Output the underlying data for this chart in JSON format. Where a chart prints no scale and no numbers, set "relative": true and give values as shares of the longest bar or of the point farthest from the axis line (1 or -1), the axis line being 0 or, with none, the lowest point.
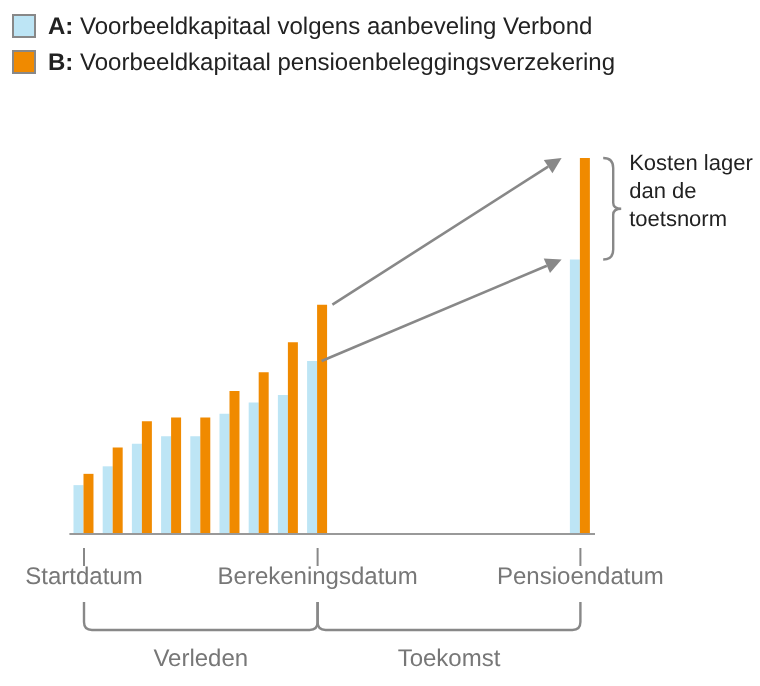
{
  "chart_data": {
    "type": "bar",
    "relative": true,
    "legend": "top left",
    "categories": [
      "Startdatum",
      null,
      null,
      null,
      null,
      null,
      null,
      null,
      "Berekeningsdatum",
      null,
      null,
      null,
      null,
      null,
      null,
      null,
      null,
      "Pensioendatum"
    ],
    "series": [
      {
        "name": "A: Voorbeeldkapitaal volgens aanbeveling Verbond",
        "color": "#bde5f5",
        "values": [
          0.13,
          0.18,
          0.24,
          0.26,
          0.26,
          0.32,
          0.35,
          0.37,
          0.46,
          null,
          null,
          null,
          null,
          null,
          null,
          null,
          null,
          0.73
        ]
      },
      {
        "name": "B: Voorbeeldkapitaal pensioenbeleggingsverzekering",
        "color": "#f08a00",
        "values": [
          0.16,
          0.23,
          0.3,
          0.31,
          0.31,
          0.38,
          0.43,
          0.51,
          0.61,
          null,
          null,
          null,
          null,
          null,
          null,
          null,
          null,
          1
        ]
      }
    ],
    "annotations": [
      "Kosten lager dan de toetsnorm",
      "Verleden",
      "Toekomst"
    ]
  }
}
